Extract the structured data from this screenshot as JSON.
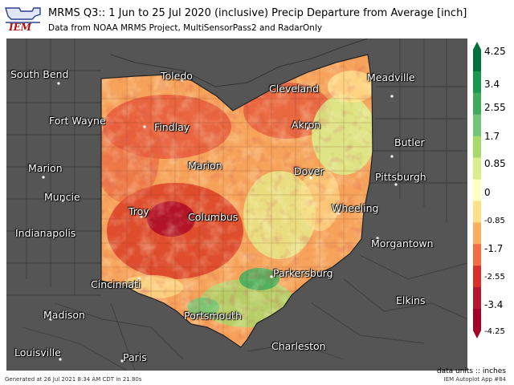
{
  "header": {
    "logo_text": "IEM",
    "title": "MRMS Q3:: 1 Jun to 25 Jul 2020 (inclusive) Precip Departure from Average [inch]",
    "subtitle": "Data from NOAA MRMS Project, MultiSensorPass2 and RadarOnly"
  },
  "cities": [
    {
      "name": "South Bend"
    },
    {
      "name": "Toledo"
    },
    {
      "name": "Cleveland"
    },
    {
      "name": "Meadville"
    },
    {
      "name": "Fort Wayne"
    },
    {
      "name": "Findlay"
    },
    {
      "name": "Akron"
    },
    {
      "name": "Butler"
    },
    {
      "name": "Marion"
    },
    {
      "name": "Marion"
    },
    {
      "name": "Dover"
    },
    {
      "name": "Pittsburgh"
    },
    {
      "name": "Muncie"
    },
    {
      "name": "Troy"
    },
    {
      "name": "Columbus"
    },
    {
      "name": "Wheeling"
    },
    {
      "name": "Indianapolis"
    },
    {
      "name": "Morgantown"
    },
    {
      "name": "Parkersburg"
    },
    {
      "name": "Cincinnati"
    },
    {
      "name": "Madison"
    },
    {
      "name": "Portsmouth"
    },
    {
      "name": "Elkins"
    },
    {
      "name": "Charleston"
    },
    {
      "name": "Louisville"
    },
    {
      "name": "Paris"
    }
  ],
  "legend": {
    "colors": [
      "#00703c",
      "#1a9850",
      "#41ab5d",
      "#74c476",
      "#a6d96a",
      "#d9ef8b",
      "#ffffbf",
      "#fee08b",
      "#fdae61",
      "#f46d43",
      "#d73027",
      "#b2182b",
      "#a50026"
    ],
    "labels": [
      "4.25",
      "3.4",
      "2.55",
      "1.7",
      "0.85",
      "0",
      "-0.85",
      "-1.7",
      "-2.55",
      "-3.4",
      "-4.25"
    ],
    "units": "data units :: inches"
  },
  "footer": {
    "generated": "Generated at 26 Jul 2021 8:34 AM CDT in 21.80s",
    "app": "IEM Autoplot App #84"
  }
}
